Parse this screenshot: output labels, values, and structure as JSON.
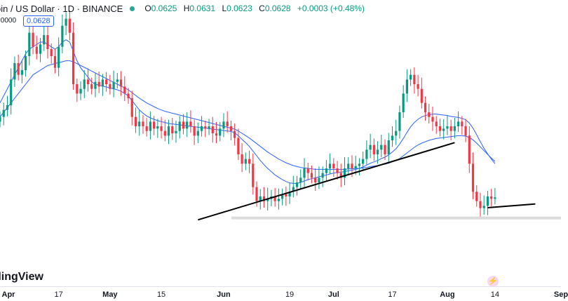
{
  "legend": {
    "symbol": "oin / US Dollar · 1D · BINANCE",
    "open_label": "O",
    "open": "0.0625",
    "high_label": "H",
    "high": "0.0631",
    "low_label": "L",
    "low": "0.0623",
    "close_label": "C",
    "close": "0.0628",
    "change": "+0.0003 (+0.48%)"
  },
  "price_tag": "0.0628",
  "left_label": ".0000",
  "watermark": "dingView",
  "colors": {
    "up": "#089981",
    "down": "#f23645",
    "ma": "#2962ff",
    "trend": "#000000"
  },
  "x_axis": {
    "ticks": [
      {
        "label": "Apr",
        "month": true
      },
      {
        "label": "17",
        "month": false
      },
      {
        "label": "May",
        "month": true
      },
      {
        "label": "15",
        "month": false
      },
      {
        "label": "Jun",
        "month": true
      },
      {
        "label": "19",
        "month": false
      },
      {
        "label": "Jul",
        "month": true
      },
      {
        "label": "17",
        "month": false
      },
      {
        "label": "Aug",
        "month": true
      },
      {
        "label": "14",
        "month": false
      },
      {
        "label": "Sep",
        "month": true
      }
    ]
  },
  "chart_data": {
    "type": "candlestick",
    "title": "oin / US Dollar · 1D · BINANCE",
    "interval": "1D",
    "x_range_days": [
      0,
      153
    ],
    "tick_days": [
      0,
      16,
      30,
      44,
      61,
      79,
      91,
      107,
      122,
      135,
      153
    ],
    "price_anchor": {
      "close": 0.0628,
      "day": 144
    },
    "ylim": [
      0.045,
      0.105
    ],
    "closes": [
      0.08,
      0.0815,
      0.0825,
      0.088,
      0.0915,
      0.089,
      0.09,
      0.093,
      0.098,
      0.095,
      0.0935,
      0.0955,
      0.0975,
      0.0945,
      0.093,
      0.0905,
      0.095,
      0.0995,
      0.101,
      0.098,
      0.087,
      0.085,
      0.086,
      0.088,
      0.087,
      0.086,
      0.0875,
      0.0865,
      0.088,
      0.087,
      0.086,
      0.0875,
      0.088,
      0.0865,
      0.085,
      0.084,
      0.08,
      0.078,
      0.079,
      0.078,
      0.077,
      0.079,
      0.0775,
      0.078,
      0.077,
      0.076,
      0.078,
      0.0765,
      0.077,
      0.079,
      0.0775,
      0.079,
      0.078,
      0.076,
      0.077,
      0.078,
      0.0775,
      0.078,
      0.0765,
      0.076,
      0.0775,
      0.079,
      0.078,
      0.077,
      0.0755,
      0.072,
      0.07,
      0.071,
      0.07,
      0.065,
      0.062,
      0.063,
      0.062,
      0.0625,
      0.063,
      0.062,
      0.0625,
      0.0635,
      0.063,
      0.064,
      0.065,
      0.066,
      0.067,
      0.069,
      0.068,
      0.067,
      0.066,
      0.067,
      0.068,
      0.069,
      0.07,
      0.069,
      0.068,
      0.067,
      0.069,
      0.07,
      0.069,
      0.0695,
      0.07,
      0.071,
      0.073,
      0.074,
      0.072,
      0.073,
      0.074,
      0.072,
      0.075,
      0.076,
      0.077,
      0.081,
      0.085,
      0.088,
      0.089,
      0.087,
      0.086,
      0.083,
      0.081,
      0.08,
      0.079,
      0.078,
      0.077,
      0.0775,
      0.078,
      0.077,
      0.078,
      0.079,
      0.078,
      0.076,
      0.07,
      0.064,
      0.062,
      0.0605,
      0.061,
      0.063,
      0.0625,
      0.0628
    ],
    "ma_fast": [
      0.083,
      0.0845,
      0.086,
      0.0875,
      0.089,
      0.0905,
      0.092,
      0.0935,
      0.0945,
      0.095,
      0.0955,
      0.096,
      0.096,
      0.0955,
      0.095,
      0.0945,
      0.095,
      0.096,
      0.0965,
      0.096,
      0.094,
      0.092,
      0.0905,
      0.0895,
      0.0885,
      0.0875,
      0.087,
      0.0868,
      0.0866,
      0.0864,
      0.0862,
      0.086,
      0.0858,
      0.0855,
      0.085,
      0.0845,
      0.0835,
      0.0825,
      0.0815,
      0.0808,
      0.0802,
      0.0798,
      0.0795,
      0.0792,
      0.079,
      0.0788,
      0.0786,
      0.0785,
      0.0784,
      0.0783,
      0.0782,
      0.0781,
      0.078,
      0.0779,
      0.0778,
      0.0777,
      0.0776,
      0.0775,
      0.0774,
      0.0773,
      0.0772,
      0.0771,
      0.077,
      0.0769,
      0.0766,
      0.076,
      0.0752,
      0.0745,
      0.0737,
      0.0727,
      0.0717,
      0.0707,
      0.0698,
      0.069,
      0.0683,
      0.0676,
      0.0671,
      0.0666,
      0.0662,
      0.0659,
      0.0658,
      0.0658,
      0.066,
      0.0663,
      0.0666,
      0.0668,
      0.067,
      0.0672,
      0.0674,
      0.0676,
      0.0678,
      0.068,
      0.0681,
      0.0682,
      0.0683,
      0.0685,
      0.0686,
      0.0688,
      0.069,
      0.0693,
      0.0697,
      0.0701,
      0.0704,
      0.0707,
      0.0711,
      0.0714,
      0.0719,
      0.0725,
      0.0732,
      0.0742,
      0.0754,
      0.0767,
      0.0779,
      0.0788,
      0.0795,
      0.08,
      0.0803,
      0.0805,
      0.0806,
      0.0806,
      0.0805,
      0.0804,
      0.0803,
      0.0801,
      0.08,
      0.0799,
      0.0797,
      0.0794,
      0.0787,
      0.0776,
      0.0762,
      0.0747,
      0.0733,
      0.0721,
      0.071,
      0.07
    ],
    "ma_slow": [
      0.08,
      0.081,
      0.082,
      0.083,
      0.084,
      0.085,
      0.086,
      0.087,
      0.088,
      0.089,
      0.0895,
      0.09,
      0.0905,
      0.091,
      0.0912,
      0.0914,
      0.0916,
      0.0918,
      0.092,
      0.092,
      0.0918,
      0.0914,
      0.091,
      0.0906,
      0.0902,
      0.0898,
      0.0894,
      0.089,
      0.0886,
      0.0882,
      0.0878,
      0.0874,
      0.087,
      0.0866,
      0.0862,
      0.0858,
      0.0852,
      0.0846,
      0.084,
      0.0835,
      0.083,
      0.0826,
      0.0822,
      0.0818,
      0.0815,
      0.0812,
      0.081,
      0.0808,
      0.0806,
      0.0804,
      0.0802,
      0.08,
      0.0798,
      0.0796,
      0.0794,
      0.0792,
      0.079,
      0.0788,
      0.0786,
      0.0784,
      0.0782,
      0.078,
      0.0778,
      0.0776,
      0.0774,
      0.077,
      0.0765,
      0.076,
      0.0755,
      0.0749,
      0.0743,
      0.0737,
      0.0731,
      0.0725,
      0.072,
      0.0715,
      0.071,
      0.0706,
      0.0702,
      0.0699,
      0.0696,
      0.0694,
      0.0692,
      0.0691,
      0.069,
      0.0689,
      0.0688,
      0.0688,
      0.0688,
      0.0688,
      0.0688,
      0.0688,
      0.0688,
      0.0688,
      0.0688,
      0.0689,
      0.0689,
      0.069,
      0.069,
      0.0691,
      0.0692,
      0.0694,
      0.0695,
      0.0696,
      0.0698,
      0.0699,
      0.0701,
      0.0704,
      0.0707,
      0.0711,
      0.0717,
      0.0723,
      0.0729,
      0.0735,
      0.074,
      0.0744,
      0.0747,
      0.075,
      0.0752,
      0.0754,
      0.0755,
      0.0756,
      0.0757,
      0.0758,
      0.0759,
      0.076,
      0.076,
      0.0759,
      0.0756,
      0.0751,
      0.0744,
      0.0736,
      0.0728,
      0.072,
      0.0712,
      0.0705
    ],
    "trendlines": [
      {
        "name": "rising-support",
        "from": {
          "day": 54,
          "price": 0.058
        },
        "to": {
          "day": 124,
          "price": 0.0745
        }
      },
      {
        "name": "recent-support",
        "from": {
          "day": 133,
          "price": 0.0606
        },
        "to": {
          "day": 146,
          "price": 0.0614
        }
      }
    ],
    "support_zone": {
      "price_low": 0.0583,
      "price_high": 0.0587
    }
  }
}
